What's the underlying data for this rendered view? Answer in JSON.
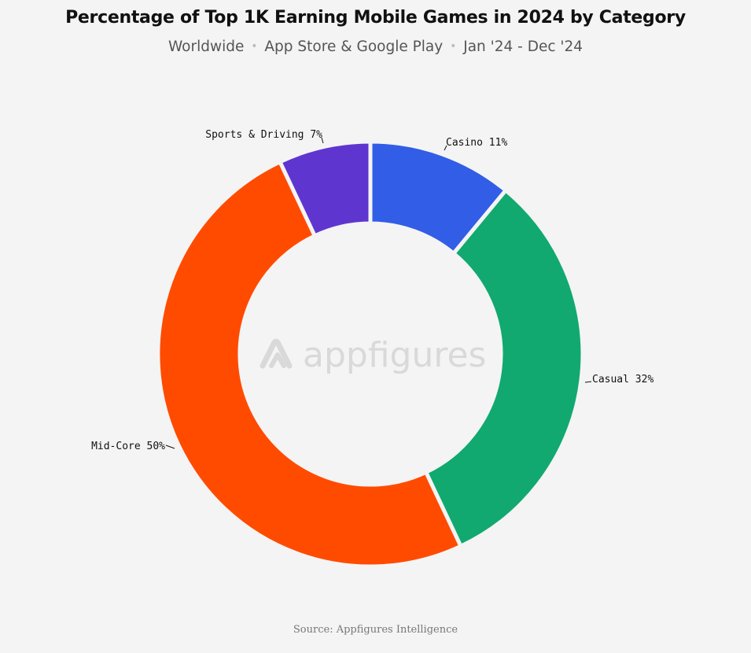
{
  "header": {
    "title": "Percentage of Top 1K Earning Mobile Games in 2024 by Category",
    "subtitle_parts": [
      "Worldwide",
      "App Store & Google Play",
      "Jan '24 - Dec '24"
    ],
    "separator": "•"
  },
  "watermark": {
    "text": "appfigures",
    "icon": "appfigures-logo-icon"
  },
  "footer": {
    "source": "Source: Appfigures Intelligence"
  },
  "chart_data": {
    "type": "pie",
    "donut": true,
    "title": "Percentage of Top 1K Earning Mobile Games in 2024 by Category",
    "subtitle": "Worldwide • App Store & Google Play • Jan '24 - Dec '24",
    "unit": "%",
    "start": "12 o'clock, clockwise",
    "slices": [
      {
        "label": "Casino",
        "value": 11,
        "display": "Casino 11%",
        "color": "#325de6"
      },
      {
        "label": "Casual",
        "value": 32,
        "display": "Casual 32%",
        "color": "#11a970"
      },
      {
        "label": "Mid-Core",
        "value": 50,
        "display": "Mid-Core 50%",
        "color": "#ff4b00"
      },
      {
        "label": "Sports & Driving",
        "value": 7,
        "display": "Sports & Driving 7%",
        "color": "#5f35d0"
      }
    ]
  }
}
